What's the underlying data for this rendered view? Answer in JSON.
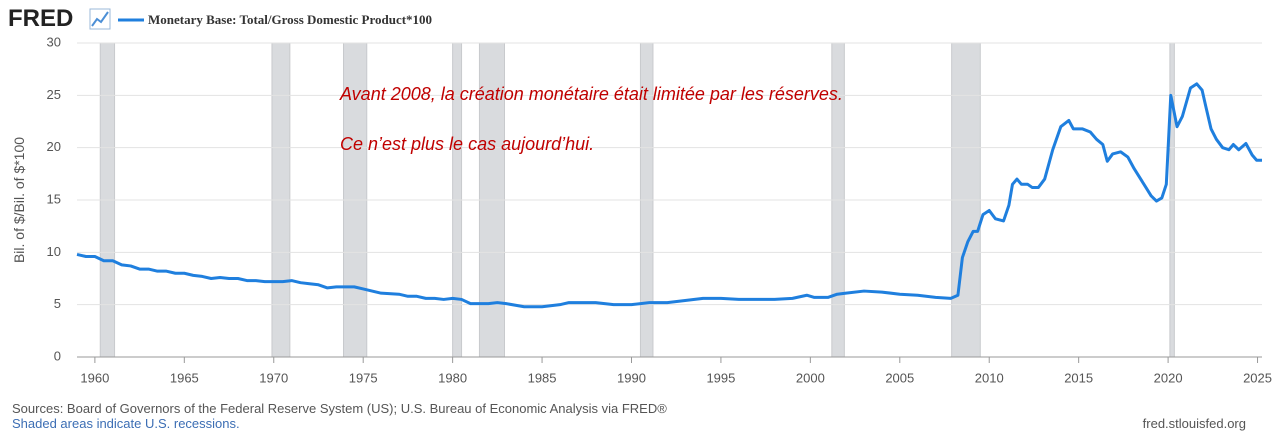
{
  "chart_data": {
    "type": "line",
    "logo": "FRED",
    "ylabel": "Bil. of $/Bil. of $*100",
    "annotations": [
      "Avant 2008, la création monétaire était limitée par les réserves.",
      "Ce n’est plus le cas aujourd’hui."
    ],
    "annotation_color": "#c00000",
    "source": "Sources: Board of Governors of the Federal Reserve System (US); U.S. Bureau of Economic Analysis via FRED®",
    "note": "Shaded areas indicate U.S. recessions.",
    "url": "fred.stlouisfed.org",
    "xlim": [
      1959,
      2025.25
    ],
    "ylim": [
      0,
      30
    ],
    "xticks": [
      1960,
      1965,
      1970,
      1975,
      1980,
      1985,
      1990,
      1995,
      2000,
      2005,
      2010,
      2015,
      2020,
      2025
    ],
    "yticks": [
      0,
      5,
      10,
      15,
      20,
      25,
      30
    ],
    "grid": true,
    "recession_color": "#d9dbde",
    "recessions": [
      [
        1960.3,
        1961.1
      ],
      [
        1969.9,
        1970.9
      ],
      [
        1973.9,
        1975.2
      ],
      [
        1980.0,
        1980.5
      ],
      [
        1981.5,
        1982.9
      ],
      [
        1990.5,
        1991.2
      ],
      [
        2001.2,
        2001.9
      ],
      [
        2007.9,
        2009.5
      ],
      [
        2020.1,
        2020.35
      ]
    ],
    "x": [
      1959,
      1959.5,
      1960,
      1960.5,
      1961,
      1961.5,
      1962,
      1962.5,
      1963,
      1963.5,
      1964,
      1964.5,
      1965,
      1965.5,
      1966,
      1966.5,
      1967,
      1967.5,
      1968,
      1968.5,
      1969,
      1969.5,
      1970,
      1970.5,
      1971,
      1971.5,
      1972,
      1972.5,
      1973,
      1973.5,
      1974,
      1974.5,
      1975,
      1975.5,
      1976,
      1977,
      1977.5,
      1978,
      1978.5,
      1979,
      1979.5,
      1980,
      1980.5,
      1981,
      1982,
      1982.5,
      1983,
      1984,
      1985,
      1986,
      1986.5,
      1987,
      1988,
      1989,
      1990,
      1991,
      1992,
      1993,
      1994,
      1995,
      1996,
      1997,
      1998,
      1999,
      1999.8,
      2000.2,
      2001,
      2001.5,
      2002,
      2003,
      2004,
      2005,
      2006,
      2007,
      2007.85,
      2008.25,
      2008.5,
      2008.8,
      2009.1,
      2009.35,
      2009.65,
      2010.0,
      2010.35,
      2010.8,
      2011.1,
      2011.3,
      2011.55,
      2011.8,
      2012.15,
      2012.4,
      2012.75,
      2013.1,
      2013.55,
      2014.0,
      2014.45,
      2014.7,
      2015.2,
      2015.65,
      2016.0,
      2016.35,
      2016.6,
      2016.9,
      2017.35,
      2017.75,
      2018.1,
      2018.65,
      2019.05,
      2019.35,
      2019.65,
      2019.9,
      2020.15,
      2020.5,
      2020.8,
      2021.25,
      2021.6,
      2021.9,
      2022.1,
      2022.4,
      2022.7,
      2023.05,
      2023.4,
      2023.65,
      2023.95,
      2024.35,
      2024.7,
      2024.95,
      2025.25
    ],
    "series": [
      {
        "name": "Monetary Base: Total/Gross Domestic Product*100",
        "color": "#1f7fde",
        "values": [
          9.8,
          9.6,
          9.6,
          9.2,
          9.2,
          8.8,
          8.7,
          8.4,
          8.4,
          8.2,
          8.2,
          8.0,
          8.0,
          7.8,
          7.7,
          7.5,
          7.6,
          7.5,
          7.5,
          7.3,
          7.3,
          7.2,
          7.2,
          7.2,
          7.3,
          7.1,
          7.0,
          6.9,
          6.6,
          6.7,
          6.7,
          6.7,
          6.5,
          6.3,
          6.1,
          6.0,
          5.8,
          5.8,
          5.6,
          5.6,
          5.5,
          5.6,
          5.5,
          5.1,
          5.1,
          5.2,
          5.1,
          4.8,
          4.8,
          5.0,
          5.2,
          5.2,
          5.2,
          5.0,
          5.0,
          5.2,
          5.2,
          5.4,
          5.6,
          5.6,
          5.5,
          5.5,
          5.5,
          5.6,
          5.9,
          5.7,
          5.7,
          6.0,
          6.1,
          6.3,
          6.2,
          6.0,
          5.9,
          5.7,
          5.6,
          5.9,
          9.5,
          11.0,
          12.0,
          12.0,
          13.6,
          14.0,
          13.2,
          13.0,
          14.5,
          16.5,
          17.0,
          16.5,
          16.5,
          16.2,
          16.2,
          17.0,
          19.8,
          22.0,
          22.6,
          21.8,
          21.8,
          21.5,
          20.8,
          20.3,
          18.7,
          19.4,
          19.6,
          19.1,
          18.0,
          16.5,
          15.4,
          14.9,
          15.2,
          16.5,
          25.0,
          22.0,
          23.0,
          25.7,
          26.1,
          25.5,
          24.0,
          21.8,
          20.8,
          20.0,
          19.8,
          20.3,
          19.8,
          20.4,
          19.3,
          18.8,
          18.8
        ]
      }
    ]
  }
}
